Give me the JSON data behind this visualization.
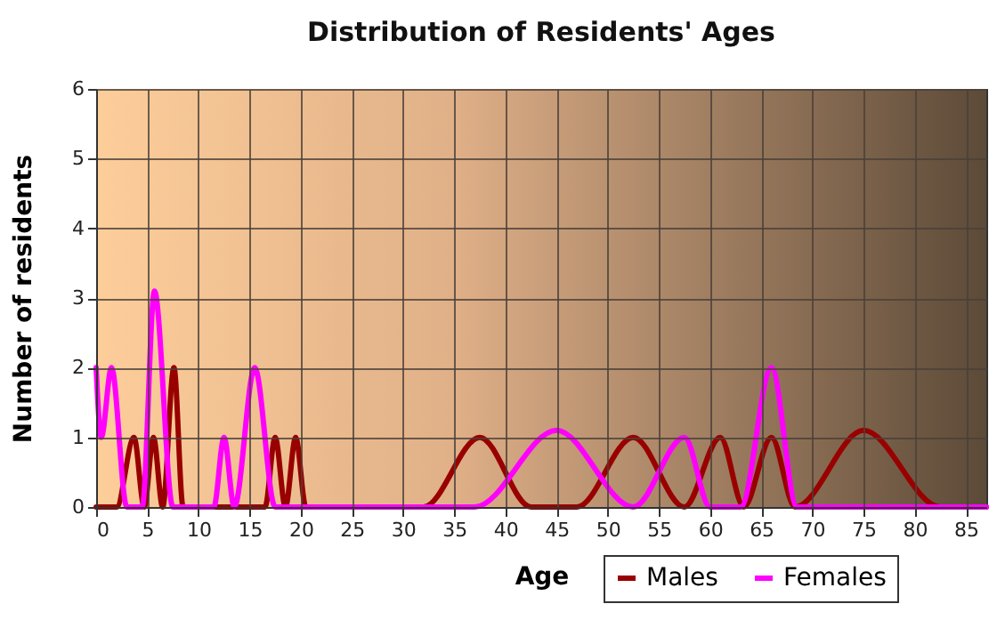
{
  "chart_data": {
    "type": "line",
    "title": "Distribution of Residents' Ages",
    "xlabel": "Age",
    "ylabel": "Number of residents",
    "xlim": [
      0,
      87
    ],
    "xticks": [
      0,
      5,
      10,
      15,
      20,
      25,
      30,
      35,
      40,
      45,
      50,
      55,
      60,
      65,
      70,
      75,
      80,
      85
    ],
    "ylim": [
      0,
      6
    ],
    "yticks": [
      0,
      1,
      2,
      3,
      4,
      5,
      6
    ],
    "grid": true,
    "legend": "bottom right",
    "marker": "none",
    "line_style": "solid",
    "series": [
      {
        "name": "Males",
        "color": "#990000",
        "x": [
          0,
          2,
          3.7,
          4.7,
          5.6,
          6.5,
          7.6,
          8.5,
          16.5,
          17.5,
          18.5,
          19.5,
          20.5,
          32,
          37.5,
          42.5,
          47,
          52.5,
          57.5,
          61,
          63.3,
          66,
          68.3,
          75,
          82.5,
          87
        ],
        "values": [
          0,
          0,
          1,
          0,
          1,
          0,
          2,
          0,
          0,
          1,
          0,
          1,
          0,
          0,
          1,
          0,
          0,
          1,
          0,
          1,
          0,
          1,
          0,
          1.1,
          0,
          0
        ]
      },
      {
        "name": "Females",
        "color": "#ff00ff",
        "x": [
          0,
          0.5,
          1.5,
          3,
          4.5,
          5.7,
          7.5,
          11.5,
          12.5,
          13.5,
          15.5,
          17.5,
          37,
          45,
          52.5,
          57.5,
          60,
          63,
          66,
          68.5,
          87
        ],
        "values": [
          2,
          1,
          2,
          0,
          0,
          3.1,
          0,
          0,
          1,
          0,
          2,
          0,
          0,
          1.1,
          0,
          1,
          0,
          0,
          2,
          0,
          0
        ]
      }
    ]
  }
}
